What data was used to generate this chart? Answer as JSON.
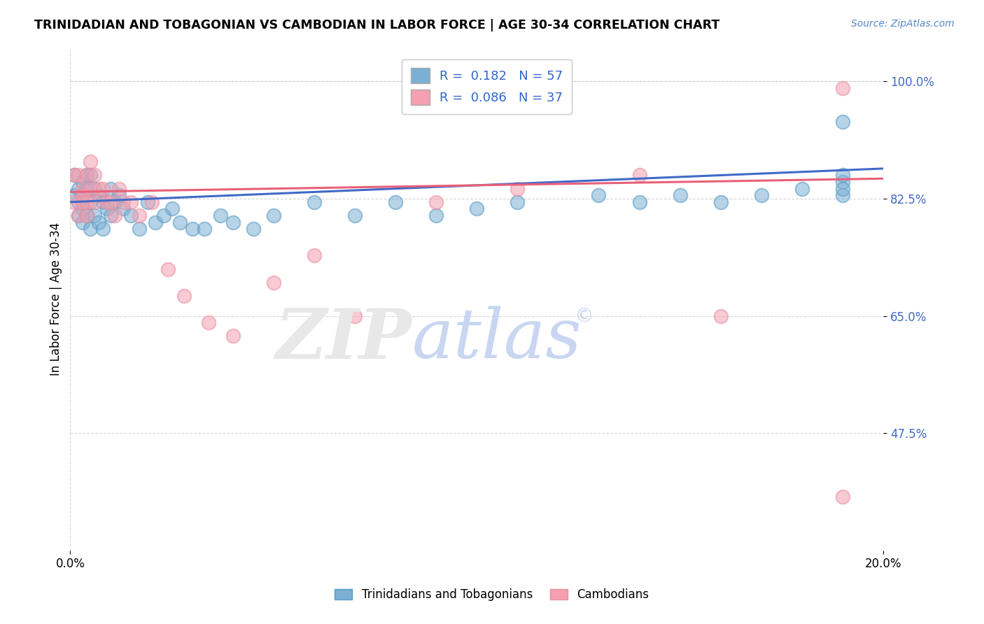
{
  "title": "TRINIDADIAN AND TOBAGONIAN VS CAMBODIAN IN LABOR FORCE | AGE 30-34 CORRELATION CHART",
  "source": "Source: ZipAtlas.com",
  "ylabel": "In Labor Force | Age 30-34",
  "xlim": [
    0.0,
    0.2
  ],
  "ylim": [
    0.3,
    1.05
  ],
  "ytick_vals": [
    0.475,
    0.65,
    0.825,
    1.0
  ],
  "ytick_labels": [
    "47.5%",
    "65.0%",
    "82.5%",
    "100.0%"
  ],
  "xtick_vals": [
    0.0,
    0.2
  ],
  "xtick_labels": [
    "0.0%",
    "20.0%"
  ],
  "blue_R": 0.182,
  "blue_N": 57,
  "pink_R": 0.086,
  "pink_N": 37,
  "blue_color": "#7BAFD4",
  "pink_color": "#F4A0B0",
  "blue_line_color": "#4169C8",
  "pink_line_color": "#E8607A",
  "blue_edge_color": "#5B9AC4",
  "pink_edge_color": "#E890A0",
  "legend_labels": [
    "Trinidadians and Tobagonians",
    "Cambodians"
  ],
  "blue_line_y0": 0.82,
  "blue_line_y1": 0.87,
  "pink_line_y0": 0.835,
  "pink_line_y1": 0.855,
  "blue_scatter_x": [
    0.001,
    0.001,
    0.002,
    0.002,
    0.002,
    0.003,
    0.003,
    0.003,
    0.003,
    0.004,
    0.004,
    0.004,
    0.005,
    0.005,
    0.005,
    0.006,
    0.006,
    0.007,
    0.007,
    0.008,
    0.008,
    0.009,
    0.01,
    0.01,
    0.011,
    0.012,
    0.013,
    0.015,
    0.017,
    0.019,
    0.021,
    0.023,
    0.025,
    0.027,
    0.03,
    0.033,
    0.037,
    0.04,
    0.045,
    0.05,
    0.06,
    0.07,
    0.08,
    0.09,
    0.1,
    0.11,
    0.13,
    0.14,
    0.15,
    0.16,
    0.17,
    0.18,
    0.19,
    0.19,
    0.19,
    0.19,
    0.19
  ],
  "blue_scatter_y": [
    0.86,
    0.83,
    0.82,
    0.84,
    0.8,
    0.85,
    0.83,
    0.81,
    0.79,
    0.86,
    0.84,
    0.8,
    0.86,
    0.82,
    0.78,
    0.84,
    0.8,
    0.83,
    0.79,
    0.82,
    0.78,
    0.81,
    0.84,
    0.8,
    0.82,
    0.83,
    0.81,
    0.8,
    0.78,
    0.82,
    0.79,
    0.8,
    0.81,
    0.79,
    0.78,
    0.78,
    0.8,
    0.79,
    0.78,
    0.8,
    0.82,
    0.8,
    0.82,
    0.8,
    0.81,
    0.82,
    0.83,
    0.82,
    0.83,
    0.82,
    0.83,
    0.84,
    0.85,
    0.83,
    0.84,
    0.86,
    0.94
  ],
  "pink_scatter_x": [
    0.001,
    0.001,
    0.002,
    0.002,
    0.003,
    0.003,
    0.003,
    0.004,
    0.004,
    0.004,
    0.005,
    0.005,
    0.006,
    0.006,
    0.007,
    0.008,
    0.009,
    0.01,
    0.011,
    0.012,
    0.013,
    0.015,
    0.017,
    0.02,
    0.024,
    0.028,
    0.034,
    0.04,
    0.05,
    0.06,
    0.07,
    0.09,
    0.11,
    0.14,
    0.16,
    0.19,
    0.19
  ],
  "pink_scatter_y": [
    0.86,
    0.82,
    0.86,
    0.8,
    0.84,
    0.83,
    0.82,
    0.86,
    0.82,
    0.8,
    0.88,
    0.84,
    0.86,
    0.82,
    0.84,
    0.84,
    0.82,
    0.82,
    0.8,
    0.84,
    0.82,
    0.82,
    0.8,
    0.82,
    0.72,
    0.68,
    0.64,
    0.62,
    0.7,
    0.74,
    0.65,
    0.82,
    0.84,
    0.86,
    0.65,
    0.38,
    0.99
  ]
}
